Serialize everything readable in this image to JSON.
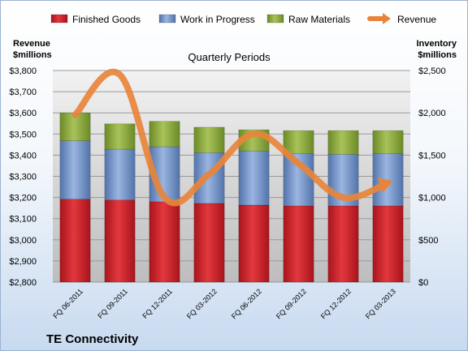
{
  "chart_data": {
    "type": "bar",
    "subtitle": "Quarterly Periods",
    "footer_title": "TE Connectivity",
    "y_left_label": [
      "Revenue",
      "$millions"
    ],
    "y_right_label": [
      "Inventory",
      "$millions"
    ],
    "y_left_range": [
      2800,
      3800
    ],
    "y_left_ticks": [
      "$2,800",
      "$2,900",
      "$3,000",
      "$3,100",
      "$3,200",
      "$3,300",
      "$3,400",
      "$3,500",
      "$3,600",
      "$3,700",
      "$3,800"
    ],
    "y_right_range": [
      0,
      2500
    ],
    "y_right_ticks": [
      "$0",
      "$500",
      "$1,000",
      "$1,500",
      "$2,000",
      "$2,500"
    ],
    "categories": [
      "FQ 06-2011",
      "FQ 09-2011",
      "FQ 12-2011",
      "FQ 03-2012",
      "FQ 06-2012",
      "FQ 09-2012",
      "FQ 12-2012",
      "FQ 03-2013"
    ],
    "legend_position": "top",
    "grid": true,
    "stacked_series": [
      {
        "name": "Finished Goods",
        "axis": "right",
        "color": "#cc2229",
        "values": [
          980,
          970,
          950,
          930,
          910,
          900,
          900,
          900
        ]
      },
      {
        "name": "Work in Progress",
        "axis": "right",
        "color": "#6b8fc9",
        "values": [
          690,
          600,
          650,
          600,
          640,
          620,
          610,
          620
        ]
      },
      {
        "name": "Raw Materials",
        "axis": "right",
        "color": "#8aa83e",
        "values": [
          330,
          300,
          300,
          300,
          250,
          270,
          280,
          270
        ]
      }
    ],
    "line_series": {
      "name": "Revenue",
      "axis": "left",
      "color": "#e8843a",
      "values": [
        3590,
        3780,
        3200,
        3310,
        3500,
        3360,
        3200,
        3270
      ]
    }
  }
}
